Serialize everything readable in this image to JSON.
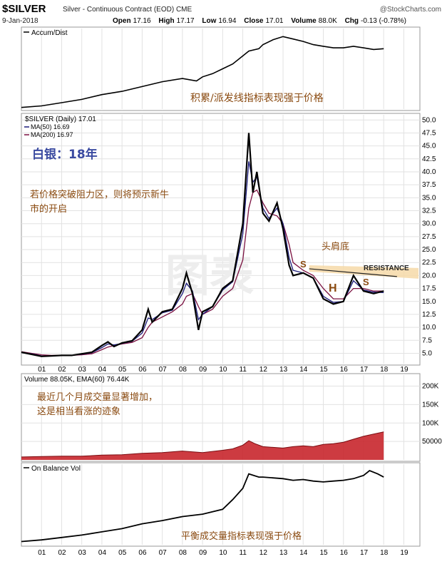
{
  "header": {
    "symbol": "$SILVER",
    "subtitle": "Silver - Continuous Contract (EOD) CME",
    "brand": "@StockCharts.com",
    "date": "9-Jan-2018",
    "open_label": "Open",
    "open": "17.16",
    "high_label": "High",
    "high": "17.17",
    "low_label": "Low",
    "low": "16.94",
    "close_label": "Close",
    "close": "17.01",
    "volume_label": "Volume",
    "volume": "88.0K",
    "chg_label": "Chg",
    "chg": "-0.13 (-0.78%)"
  },
  "colors": {
    "price": "#000000",
    "ma50": "#1a1a7a",
    "ma200": "#7a1040",
    "volume_fill": "#c8262c",
    "annotation_brown": "#8a4a10",
    "annotation_title": "#3a4aa0",
    "resistance_band": "#f6d9a8",
    "grid": "#e2e2e2"
  },
  "watermark": "图表",
  "chart_data": [
    {
      "type": "line",
      "legend": "Accum/Dist",
      "annotation": "积累/派发线指标表现强于价格",
      "x": [
        2000,
        2001,
        2002,
        2003,
        2004,
        2005,
        2006,
        2006.5,
        2007,
        2008,
        2008.7,
        2009,
        2009.5,
        2010,
        2010.5,
        2011,
        2011.3,
        2011.8,
        2012,
        2012.5,
        2013,
        2013.5,
        2014,
        2014.5,
        2015,
        2015.5,
        2016,
        2016.5,
        2017,
        2017.5,
        2018
      ],
      "y": [
        2,
        4,
        8,
        12,
        18,
        22,
        28,
        31,
        34,
        38,
        35,
        40,
        44,
        50,
        56,
        66,
        72,
        75,
        80,
        86,
        90,
        87,
        84,
        80,
        78,
        76,
        76,
        78,
        76,
        74,
        75
      ],
      "ylim": [
        0,
        100
      ]
    },
    {
      "type": "line",
      "legend": "$SILVER (Daily) 17.01",
      "ma_labels": [
        "MA(50) 16.69",
        "MA(200) 16.97"
      ],
      "title_cn": "白银：18年",
      "annotation_1": "若价格突破阻力区，则将预示新牛市的开启",
      "annotation_2": "头肩底",
      "resistance_label": "RESISTANCE",
      "pattern_labels": [
        "S",
        "H",
        "S"
      ],
      "x": [
        2000,
        2000.5,
        2001,
        2001.5,
        2002,
        2002.5,
        2003,
        2003.5,
        2004,
        2004.3,
        2004.6,
        2005,
        2005.5,
        2006,
        2006.3,
        2006.5,
        2007,
        2007.5,
        2008,
        2008.2,
        2008.5,
        2008.8,
        2009,
        2009.5,
        2010,
        2010.5,
        2011,
        2011.3,
        2011.5,
        2011.7,
        2012,
        2012.3,
        2012.7,
        2013,
        2013.3,
        2013.5,
        2014,
        2014.5,
        2015,
        2015.5,
        2016,
        2016.5,
        2017,
        2017.5,
        2018
      ],
      "y": [
        5.2,
        4.8,
        4.4,
        4.5,
        4.6,
        4.6,
        4.9,
        5.2,
        6.5,
        7.2,
        6.3,
        7.0,
        7.4,
        9.5,
        13.5,
        11.0,
        13.0,
        13.5,
        17.5,
        20.5,
        16.5,
        9.5,
        13.0,
        14.0,
        17.5,
        19.0,
        30.0,
        47.5,
        36.0,
        40.0,
        32.0,
        30.5,
        34.0,
        29.0,
        22.0,
        20.0,
        20.5,
        19.5,
        15.5,
        14.5,
        15.0,
        20.0,
        17.0,
        16.5,
        17.0
      ],
      "ma50": [
        5.1,
        4.9,
        4.5,
        4.5,
        4.6,
        4.6,
        4.8,
        5.1,
        6.1,
        6.8,
        6.6,
        6.9,
        7.3,
        8.9,
        11.8,
        11.5,
        12.8,
        13.3,
        16.5,
        18.5,
        17.0,
        11.5,
        12.5,
        14.0,
        17.2,
        18.8,
        28.0,
        42.0,
        38.0,
        39.0,
        33.0,
        31.0,
        33.0,
        30.0,
        23.5,
        21.0,
        20.5,
        19.5,
        16.0,
        14.8,
        15.0,
        19.0,
        17.2,
        16.8,
        16.7
      ],
      "ma200": [
        5.3,
        5.0,
        4.7,
        4.6,
        4.6,
        4.6,
        4.7,
        4.9,
        5.7,
        6.2,
        6.5,
        6.8,
        7.1,
        8.0,
        10.0,
        11.0,
        12.0,
        13.0,
        14.5,
        16.0,
        16.5,
        14.0,
        12.5,
        13.5,
        16.0,
        17.5,
        23.0,
        33.0,
        36.0,
        36.5,
        34.0,
        32.0,
        31.5,
        30.0,
        26.0,
        22.5,
        21.0,
        20.0,
        17.5,
        15.5,
        15.5,
        17.5,
        17.5,
        17.0,
        17.0
      ],
      "resistance": [
        [
          2014.3,
          21.3
        ],
        [
          2017.6,
          19.8
        ]
      ],
      "ylim": [
        3.0,
        51.0
      ],
      "y_ticks": [
        "50.0",
        "47.5",
        "45.0",
        "42.5",
        "40.0",
        "37.5",
        "35.0",
        "32.5",
        "30.0",
        "27.5",
        "25.0",
        "22.5",
        "20.0",
        "17.5",
        "15.0",
        "12.5",
        "10.0",
        "7.5",
        "5.0"
      ],
      "x_ticks": [
        "01",
        "02",
        "03",
        "04",
        "05",
        "06",
        "07",
        "08",
        "09",
        "10",
        "11",
        "12",
        "13",
        "14",
        "15",
        "16",
        "17",
        "18",
        "19"
      ]
    },
    {
      "type": "area",
      "legend": "Volume 88.05K, EMA(60) 76.44K",
      "annotation": "最近几个月成交量显著增加，这是相当看涨的迹象",
      "x": [
        2000,
        2001,
        2002,
        2003,
        2004,
        2005,
        2006,
        2007,
        2008,
        2009,
        2010,
        2010.5,
        2011,
        2011.3,
        2011.6,
        2012,
        2012.5,
        2013,
        2013.5,
        2014,
        2014.5,
        2015,
        2015.5,
        2016,
        2016.5,
        2017,
        2017.5,
        2018
      ],
      "ema": [
        8,
        9,
        10,
        10,
        13,
        14,
        18,
        20,
        24,
        20,
        26,
        30,
        40,
        52,
        44,
        36,
        34,
        32,
        36,
        38,
        36,
        42,
        44,
        48,
        56,
        64,
        70,
        76
      ],
      "ylim": [
        0,
        230
      ],
      "y_ticks": [
        "200K",
        "150K",
        "100K",
        "50000"
      ]
    },
    {
      "type": "line",
      "legend": "On Balance Vol",
      "annotation": "平衡成交量指标表现强于价格",
      "x": [
        2000,
        2001,
        2002,
        2003,
        2004,
        2005,
        2006,
        2007,
        2008,
        2009,
        2010,
        2010.5,
        2011,
        2011.3,
        2011.8,
        2012,
        2013,
        2013.5,
        2014,
        2014.5,
        2015,
        2015.5,
        2016,
        2016.5,
        2017,
        2017.3,
        2017.7,
        2018
      ],
      "y": [
        4,
        6,
        9,
        12,
        16,
        20,
        26,
        30,
        35,
        38,
        44,
        56,
        70,
        88,
        84,
        84,
        82,
        80,
        81,
        79,
        78,
        79,
        80,
        82,
        86,
        92,
        88,
        84
      ],
      "ylim": [
        0,
        100
      ],
      "x_ticks": [
        "01",
        "02",
        "03",
        "04",
        "05",
        "06",
        "07",
        "08",
        "09",
        "10",
        "11",
        "12",
        "13",
        "14",
        "15",
        "16",
        "17",
        "18",
        "19"
      ]
    }
  ]
}
